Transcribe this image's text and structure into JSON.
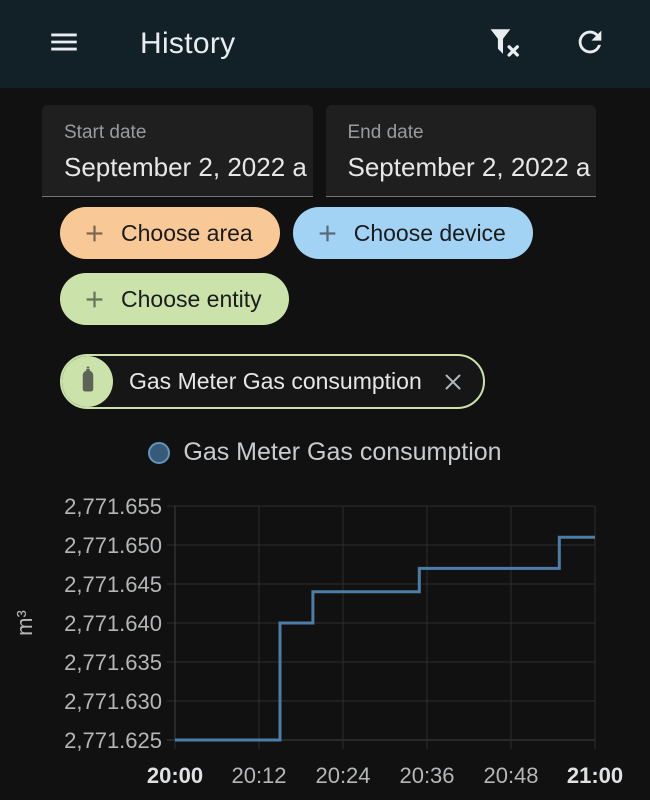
{
  "app_bar": {
    "title": "History",
    "background": "#122028",
    "icon_color": "#e9edf0"
  },
  "date_range": {
    "start": {
      "label": "Start date",
      "value": "September 2, 2022 a"
    },
    "end": {
      "label": "End date",
      "value": "September 2, 2022 a"
    }
  },
  "filter_chips": [
    {
      "id": "area",
      "label": "Choose area",
      "background": "#f8c996"
    },
    {
      "id": "device",
      "label": "Choose device",
      "background": "#a2d3f5"
    },
    {
      "id": "entity",
      "label": "Choose entity",
      "background": "#cbe3ab"
    }
  ],
  "selected_entity": {
    "label": "Gas Meter Gas consumption",
    "accent": "#cbe3ab",
    "icon": "gas-cylinder-icon",
    "icon_color": "#5d6356"
  },
  "legend": {
    "label": "Gas Meter Gas consumption",
    "dot_fill": "#375a7a",
    "dot_border": "#6494ba"
  },
  "chart_data": {
    "type": "line",
    "step": "after",
    "title": "Gas Meter Gas consumption",
    "ylabel": "m³",
    "grid": true,
    "legend_position": "top",
    "background": "#111111",
    "grid_color": "#2d2d2d",
    "axis_color": "#3f3f3f",
    "ylim": [
      2771.625,
      2771.655
    ],
    "xlim_minutes": [
      0,
      60
    ],
    "yticks": [
      {
        "value": 2771.625,
        "label": "2,771.625"
      },
      {
        "value": 2771.63,
        "label": "2,771.630"
      },
      {
        "value": 2771.635,
        "label": "2,771.635"
      },
      {
        "value": 2771.64,
        "label": "2,771.640"
      },
      {
        "value": 2771.645,
        "label": "2,771.645"
      },
      {
        "value": 2771.65,
        "label": "2,771.650"
      },
      {
        "value": 2771.655,
        "label": "2,771.655"
      }
    ],
    "xticks": [
      {
        "min": 0,
        "label": "20:00",
        "bold": true
      },
      {
        "min": 12,
        "label": "20:12",
        "bold": false
      },
      {
        "min": 24,
        "label": "20:24",
        "bold": false
      },
      {
        "min": 36,
        "label": "20:36",
        "bold": false
      },
      {
        "min": 48,
        "label": "20:48",
        "bold": false
      },
      {
        "min": 60,
        "label": "21:00",
        "bold": true
      }
    ],
    "series": [
      {
        "name": "Gas Meter Gas consumption",
        "color": "#4d7da6",
        "unit": "m³",
        "points": [
          {
            "min": 0,
            "value": 2771.625
          },
          {
            "min": 15,
            "value": 2771.64
          },
          {
            "min": 19.7,
            "value": 2771.644
          },
          {
            "min": 34.9,
            "value": 2771.647
          },
          {
            "min": 54.9,
            "value": 2771.651
          },
          {
            "min": 60,
            "value": 2771.651
          }
        ]
      }
    ]
  }
}
